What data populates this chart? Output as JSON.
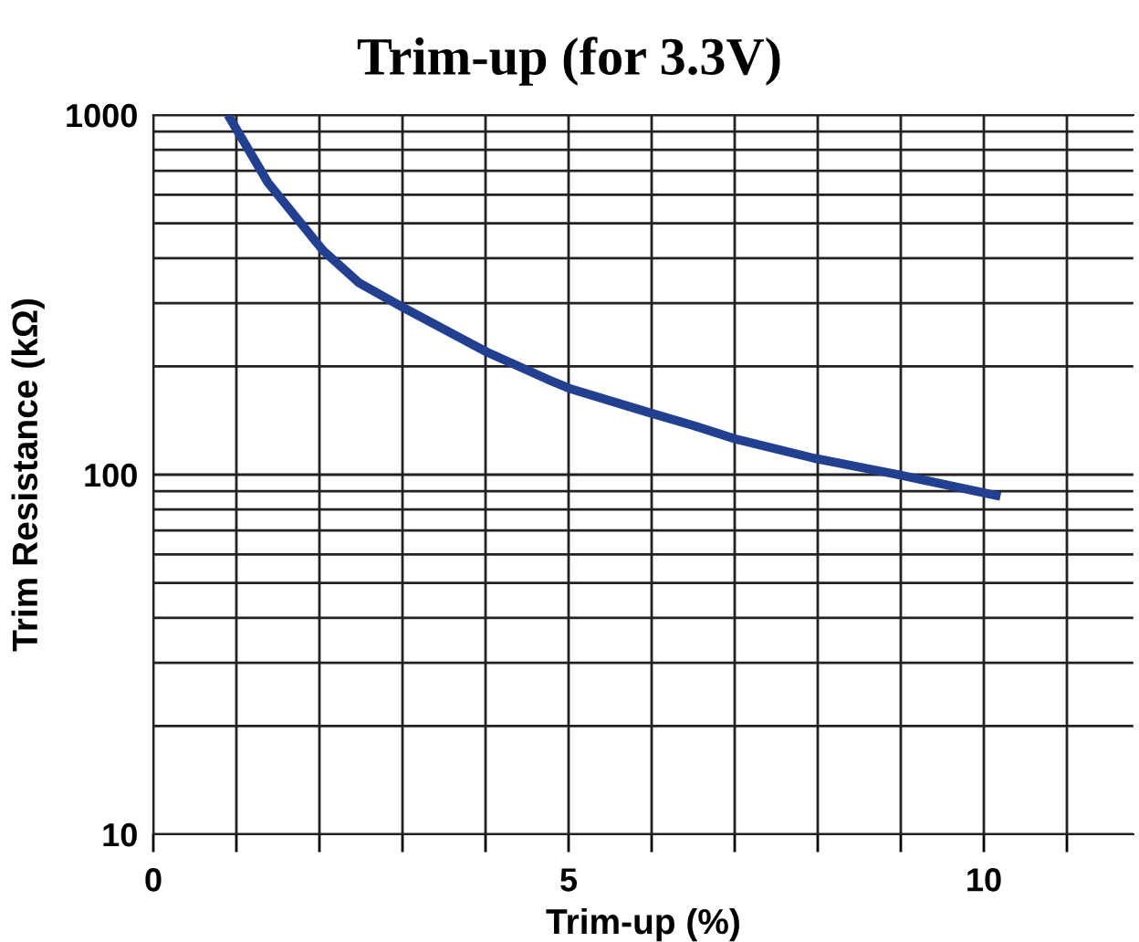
{
  "chart_data": {
    "type": "line",
    "title": "Trim-up (for 3.3V)",
    "xlabel": "Trim-up (%)",
    "ylabel": "Trim Resistance (kΩ)",
    "series": [
      {
        "color": "#233f8f",
        "x": [
          0.9,
          1.38,
          2.04,
          2.48,
          2.99,
          4.02,
          4.75,
          5.03,
          5.96,
          6.5,
          6.99,
          7.96,
          8.97,
          10.2
        ],
        "values": [
          1000,
          649,
          421,
          341,
          293,
          219,
          184,
          173,
          149,
          137,
          126,
          111,
          100,
          87
        ]
      }
    ],
    "log": "y",
    "xlim": [
      0,
      11.8
    ],
    "ylim": [
      10,
      1000
    ],
    "xticks": [
      0,
      {
        "value": 1,
        "label": null
      },
      {
        "value": 2,
        "label": null
      },
      {
        "value": 3,
        "label": null
      },
      {
        "value": 4,
        "label": null
      },
      5,
      {
        "value": 6,
        "label": null
      },
      {
        "value": 7,
        "label": null
      },
      {
        "value": 8,
        "label": null
      },
      {
        "value": 9,
        "label": null
      },
      10,
      {
        "value": 11,
        "label": null
      }
    ],
    "yticks": [
      10,
      {
        "value": 20,
        "label": null
      },
      {
        "value": 30,
        "label": null
      },
      {
        "value": 40,
        "label": null
      },
      {
        "value": 50,
        "label": null
      },
      {
        "value": 60,
        "label": null
      },
      {
        "value": 70,
        "label": null
      },
      {
        "value": 80,
        "label": null
      },
      {
        "value": 90,
        "label": null
      },
      100,
      {
        "value": 200,
        "label": null
      },
      {
        "value": 300,
        "label": null
      },
      {
        "value": 400,
        "label": null
      },
      {
        "value": 500,
        "label": null
      },
      {
        "value": 600,
        "label": null
      },
      {
        "value": 700,
        "label": null
      },
      {
        "value": 800,
        "label": null
      },
      {
        "value": 900,
        "label": null
      },
      1000
    ],
    "grid": true,
    "marker": "none",
    "line_style": "solid"
  }
}
